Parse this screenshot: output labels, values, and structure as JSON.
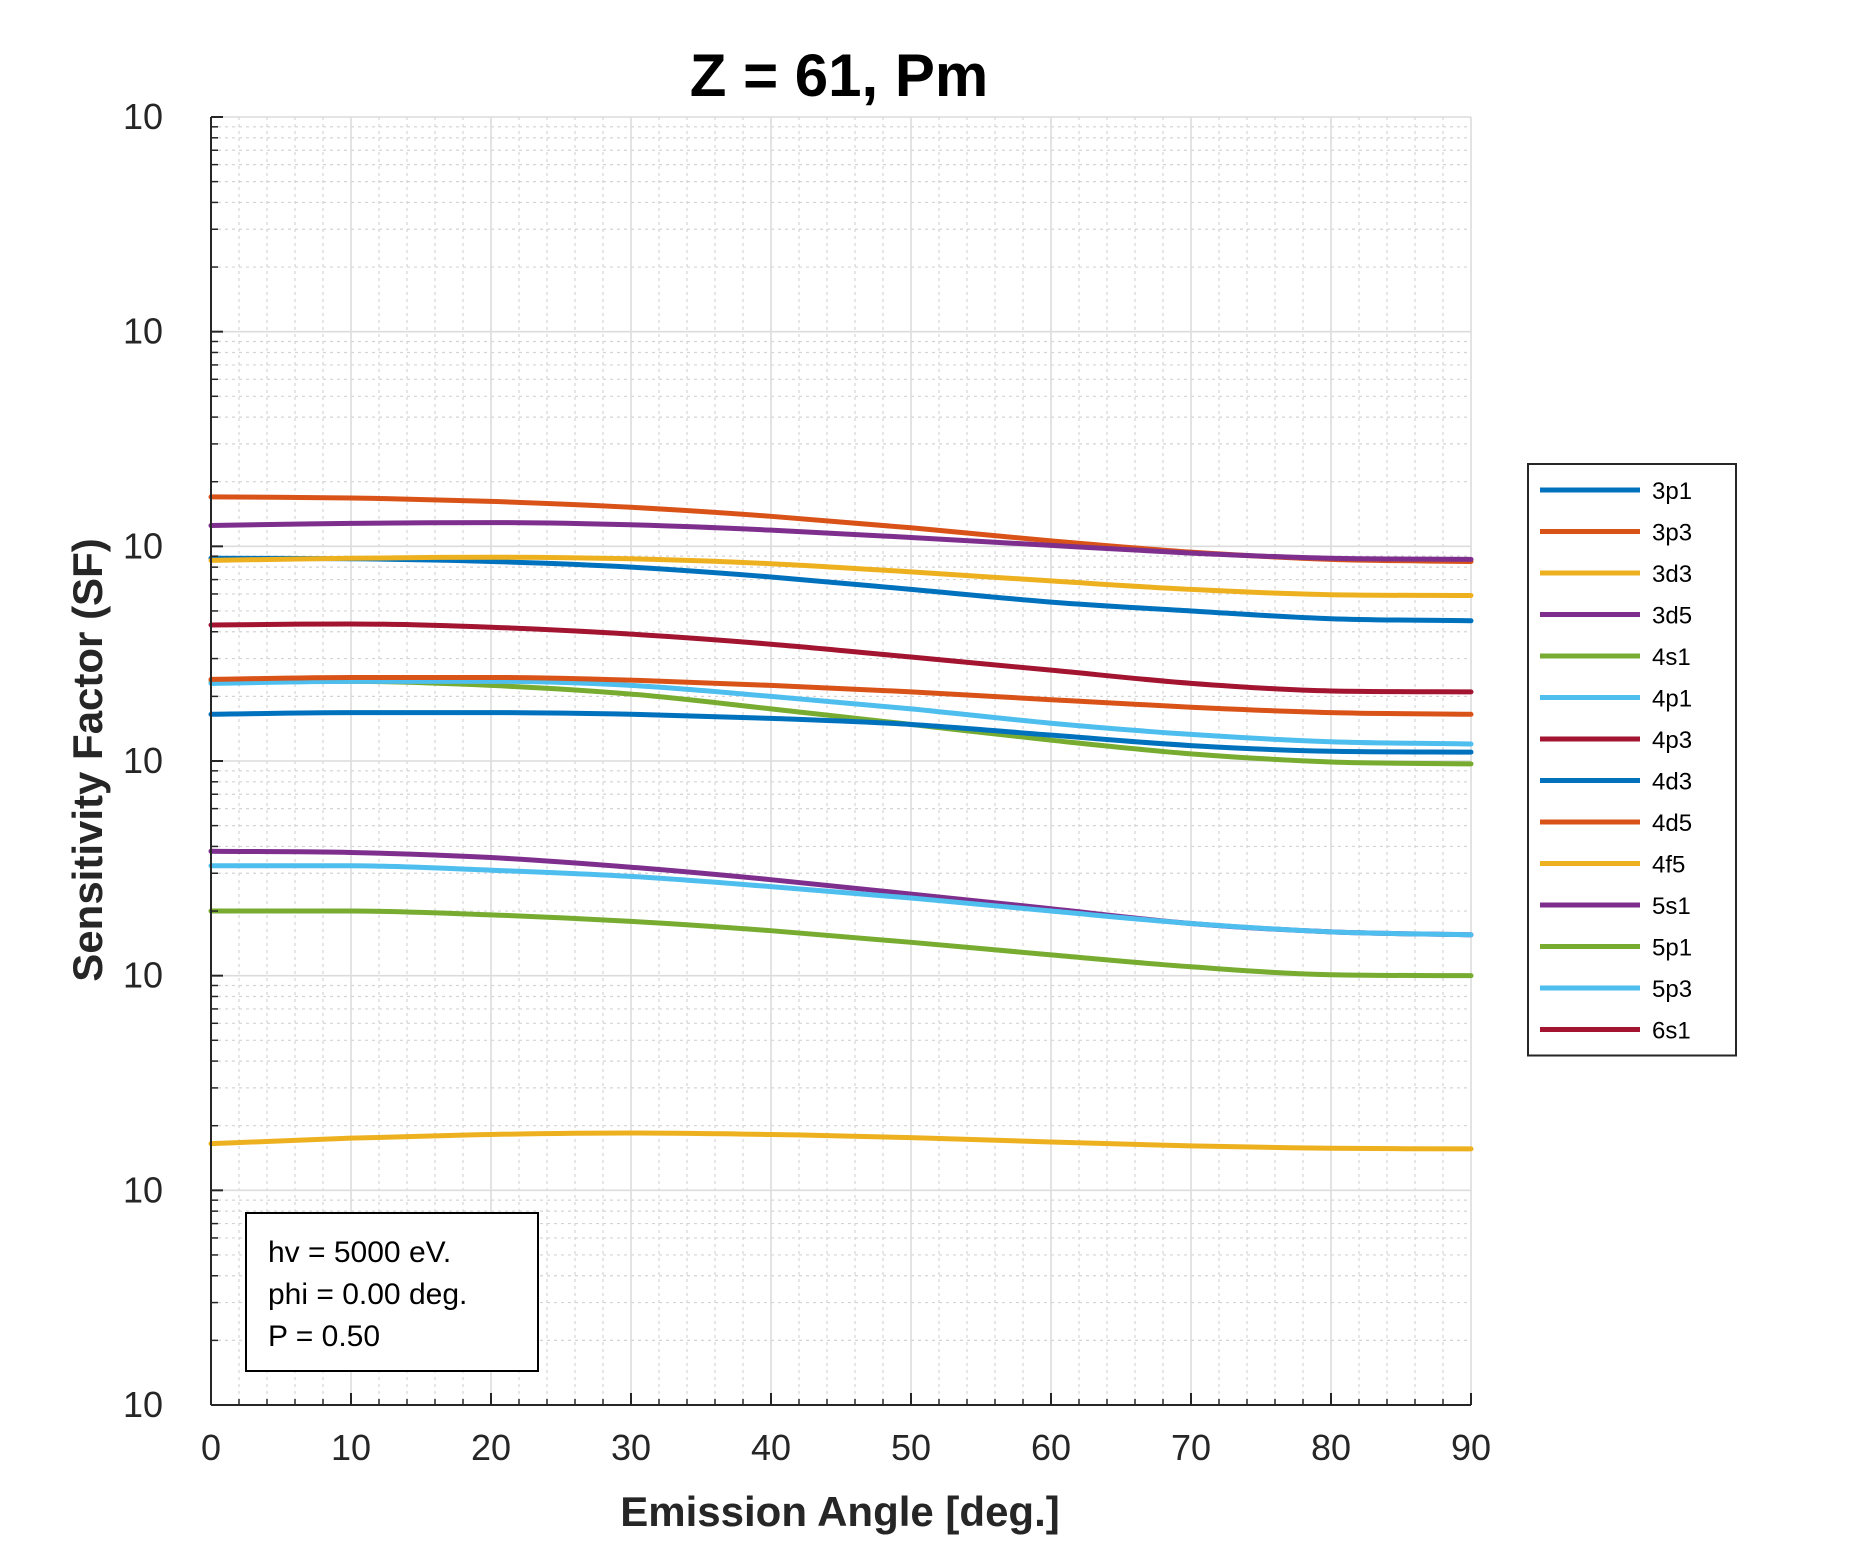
{
  "chart_data": {
    "type": "line",
    "title": "Z = 61, Pm",
    "xlabel": "Emission Angle [deg.]",
    "ylabel": "Sensitivity Factor (SF)",
    "xlim": [
      0,
      90
    ],
    "ylim": [
      10,
      10000000
    ],
    "yscale": "log",
    "grid": true,
    "x_ticks": [
      "0",
      "10",
      "20",
      "30",
      "40",
      "50",
      "60",
      "70",
      "80",
      "90"
    ],
    "y_ticks": [
      {
        "base": "10",
        "exp": "1"
      },
      {
        "base": "10",
        "exp": "2"
      },
      {
        "base": "10",
        "exp": "3"
      },
      {
        "base": "10",
        "exp": "4"
      },
      {
        "base": "10",
        "exp": "5"
      },
      {
        "base": "10",
        "exp": "6"
      },
      {
        "base": "10",
        "exp": "7"
      }
    ],
    "legend_position": "outside-right",
    "x": [
      0,
      10,
      20,
      30,
      40,
      50,
      60,
      70,
      80,
      90
    ],
    "series": [
      {
        "name": "3p1",
        "color": "#0072BD",
        "values": [
          88000,
          87500,
          85000,
          80000,
          72000,
          63000,
          55000,
          50000,
          46000,
          45000
        ]
      },
      {
        "name": "3p3",
        "color": "#D95319",
        "values": [
          170000,
          168000,
          162000,
          152000,
          138000,
          122000,
          106000,
          94000,
          87000,
          85000
        ]
      },
      {
        "name": "3d3",
        "color": "#EDB120",
        "values": [
          86000,
          88000,
          89000,
          87500,
          83000,
          76000,
          69000,
          63000,
          59500,
          59000
        ]
      },
      {
        "name": "3d5",
        "color": "#7E2F8E",
        "values": [
          125000,
          128000,
          129000,
          126000,
          119000,
          110000,
          101000,
          93000,
          88000,
          87000
        ]
      },
      {
        "name": "4s1",
        "color": "#77AC30",
        "values": [
          23500,
          23500,
          22500,
          20500,
          17500,
          14800,
          12500,
          10800,
          9900,
          9700
        ]
      },
      {
        "name": "4p1",
        "color": "#4DBEEE",
        "values": [
          23000,
          23500,
          23500,
          22500,
          20000,
          17500,
          15000,
          13300,
          12300,
          12000
        ]
      },
      {
        "name": "4p3",
        "color": "#A2142F",
        "values": [
          43000,
          43500,
          42000,
          39000,
          35000,
          30500,
          26500,
          23000,
          21200,
          21000
        ]
      },
      {
        "name": "4d3",
        "color": "#0072BD",
        "values": [
          16500,
          16800,
          16800,
          16500,
          15800,
          14800,
          13200,
          11800,
          11100,
          11000
        ]
      },
      {
        "name": "4d5",
        "color": "#D95319",
        "values": [
          24000,
          24500,
          24500,
          23800,
          22500,
          21000,
          19300,
          17800,
          16800,
          16500
        ]
      },
      {
        "name": "4f5",
        "color": "#EDB120",
        "values": [
          165,
          175,
          182,
          185,
          182,
          176,
          168,
          161,
          157,
          156
        ]
      },
      {
        "name": "5s1",
        "color": "#7E2F8E",
        "values": [
          3800,
          3750,
          3550,
          3200,
          2800,
          2400,
          2050,
          1750,
          1600,
          1550
        ]
      },
      {
        "name": "5p1",
        "color": "#77AC30",
        "values": [
          2000,
          2000,
          1920,
          1790,
          1620,
          1430,
          1250,
          1100,
          1010,
          1000
        ]
      },
      {
        "name": "5p3",
        "color": "#4DBEEE",
        "values": [
          3250,
          3250,
          3100,
          2900,
          2600,
          2300,
          2000,
          1750,
          1600,
          1550
        ]
      },
      {
        "name": "6s1",
        "color": "#A2142F",
        "values": [
          0,
          0,
          0,
          0,
          0,
          0,
          0,
          0,
          0,
          0
        ]
      }
    ],
    "annotation": [
      "hv = 5000 eV.",
      "phi = 0.00 deg.",
      "P = 0.50"
    ]
  }
}
